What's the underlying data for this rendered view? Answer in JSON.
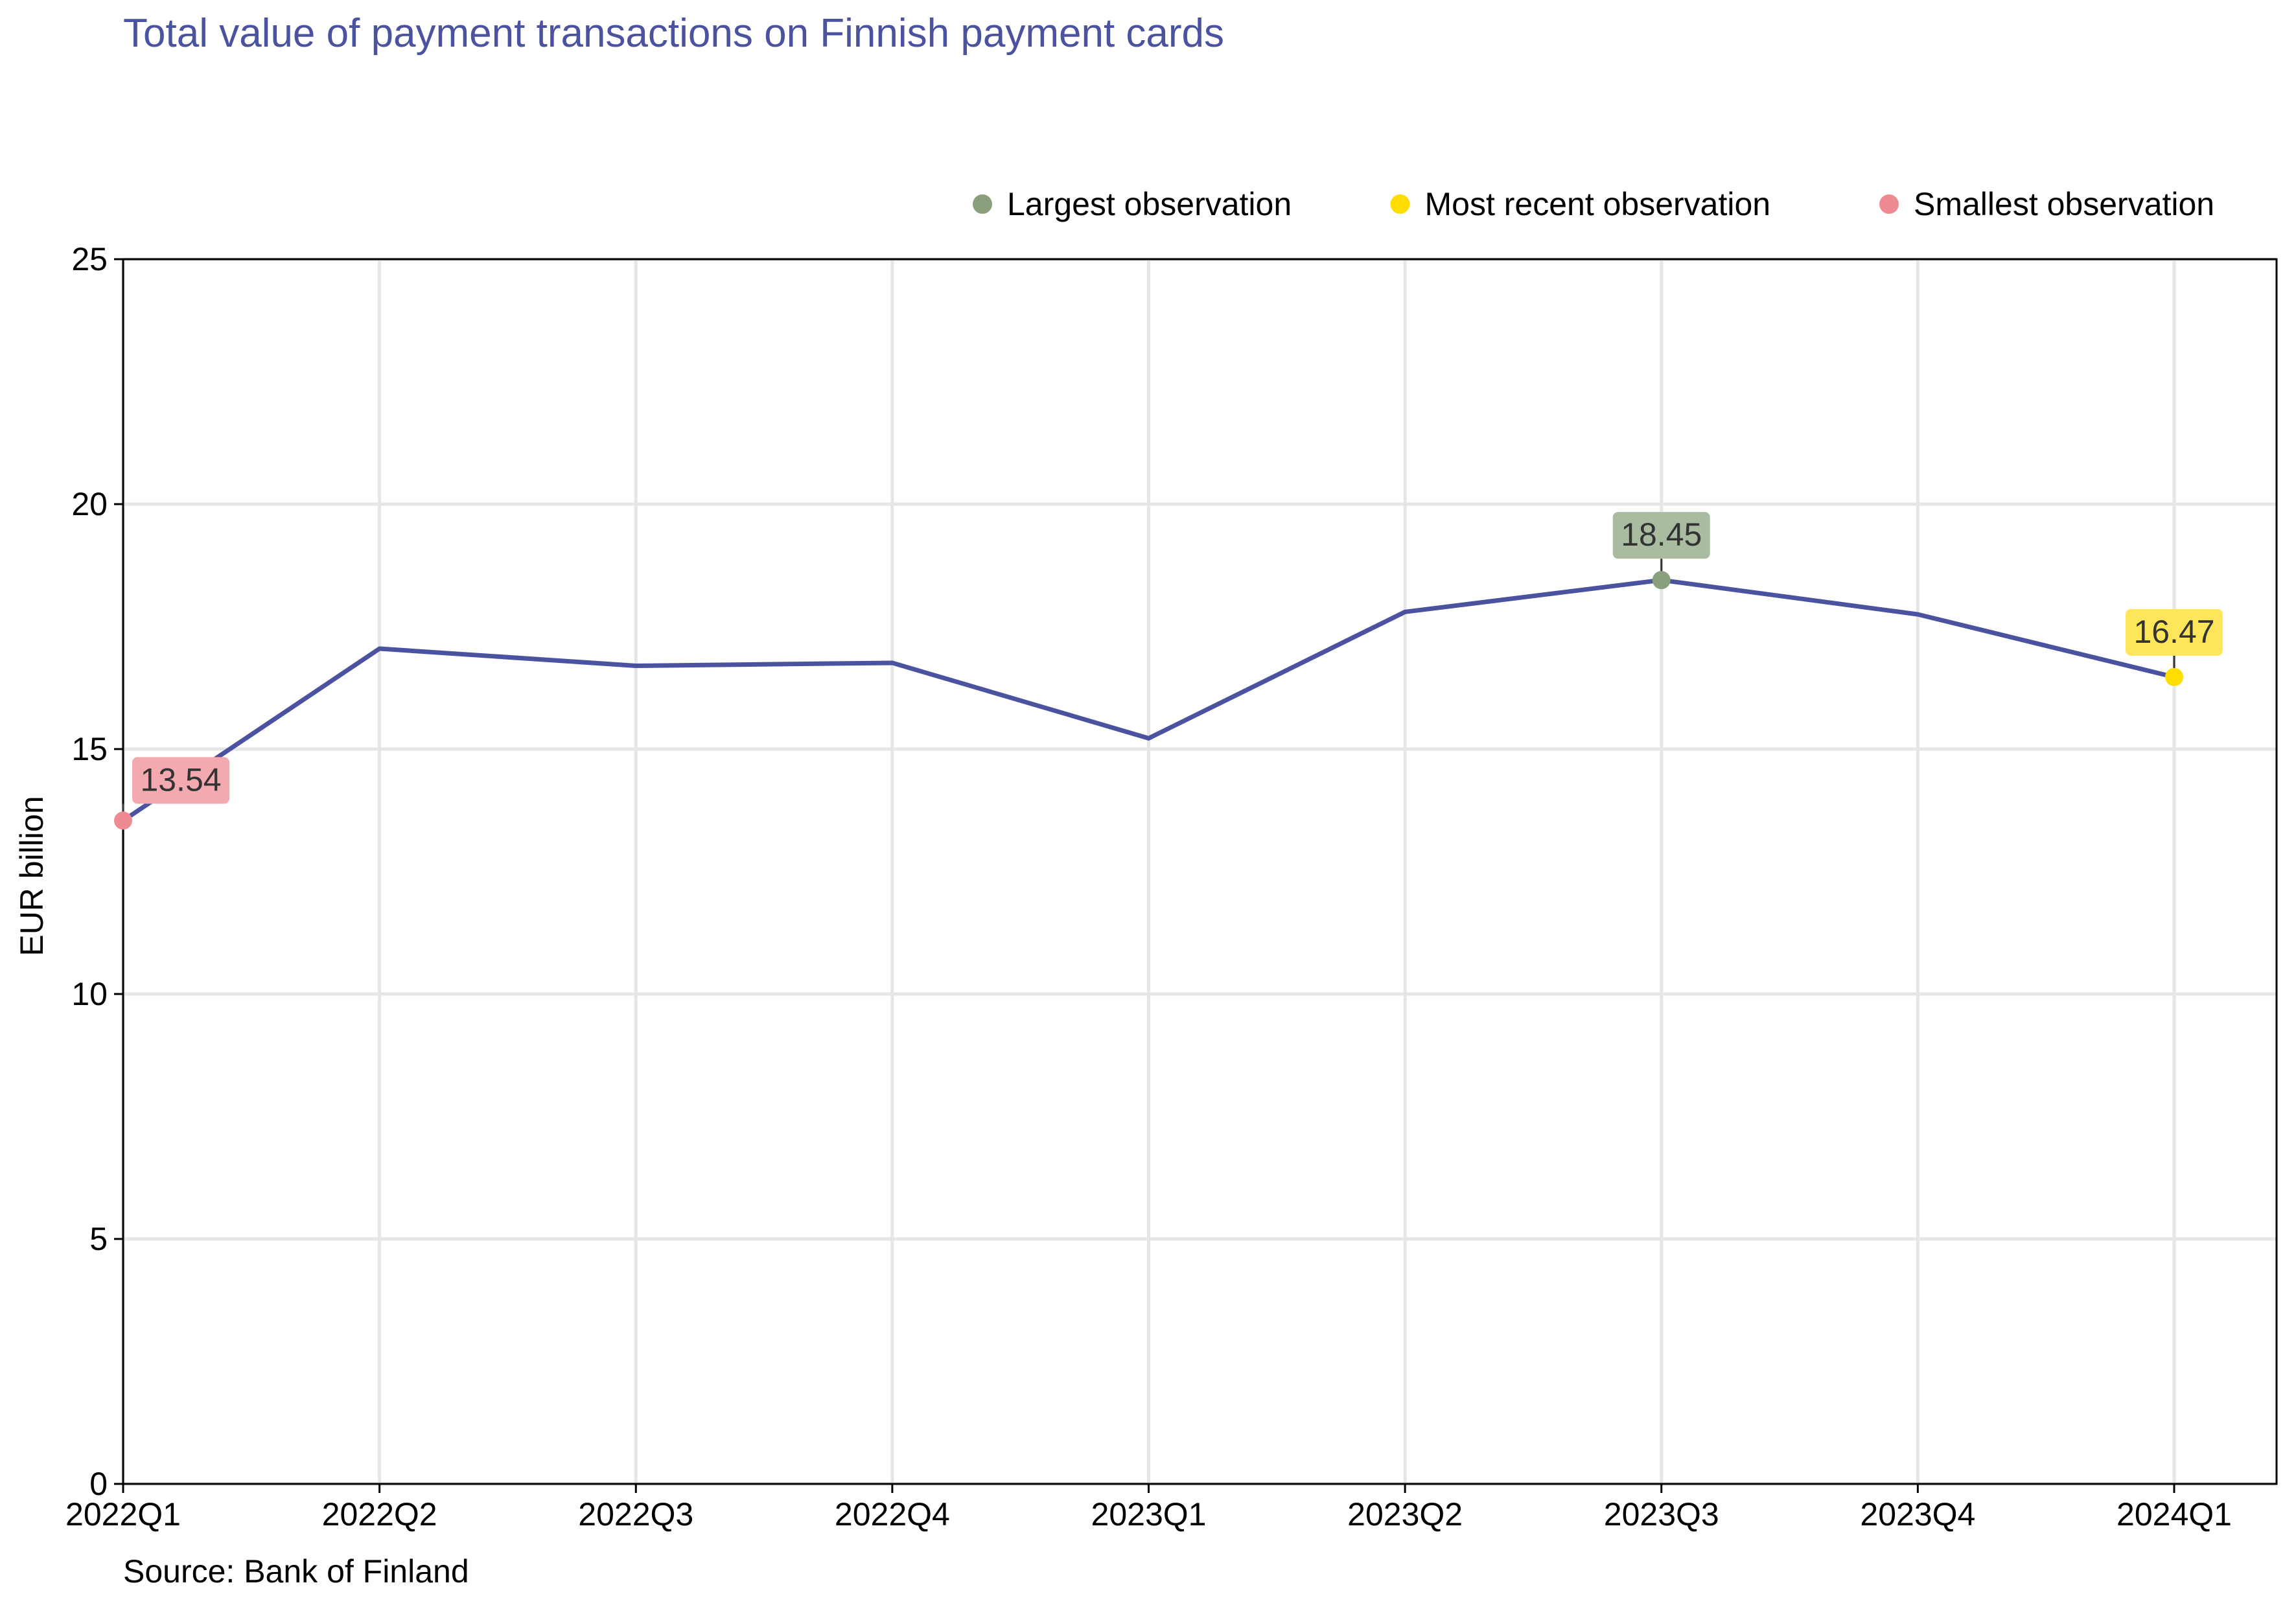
{
  "chart_data": {
    "type": "line",
    "title": "Total value of payment transactions on Finnish payment cards",
    "ylabel": "EUR billion",
    "xlabel": "",
    "source": "Source: Bank of Finland",
    "categories": [
      "2022Q1",
      "2022Q2",
      "2022Q3",
      "2022Q4",
      "2023Q1",
      "2023Q2",
      "2023Q3",
      "2023Q4",
      "2024Q1"
    ],
    "series": [
      {
        "values": [
          13.54,
          17.05,
          16.7,
          16.76,
          15.22,
          17.8,
          18.45,
          17.75,
          16.47
        ]
      }
    ],
    "ylim": [
      0,
      25
    ],
    "yticks": [
      0,
      5,
      10,
      15,
      20,
      25
    ],
    "grid": true,
    "legend": {
      "position": "top-right",
      "items": [
        {
          "label": "Largest observation",
          "color": "#8aa07d"
        },
        {
          "label": "Most recent observation",
          "color": "#ffdd00"
        },
        {
          "label": "Smallest observation",
          "color": "#ee8a92"
        }
      ]
    },
    "highlights": [
      {
        "kind": "smallest",
        "index": 0,
        "label": "13.54",
        "color": "#ee8a92",
        "box_color": "#f2aab0"
      },
      {
        "kind": "largest",
        "index": 6,
        "label": "18.45",
        "color": "#8aa07d",
        "box_color": "#a9bca0"
      },
      {
        "kind": "most_recent",
        "index": 8,
        "label": "16.47",
        "color": "#ffdd00",
        "box_color": "#fde65a"
      }
    ],
    "colors": {
      "line": "#4b53a0",
      "title": "#4b53a0",
      "grid": "#e6e6e6",
      "axis": "#000000"
    }
  }
}
